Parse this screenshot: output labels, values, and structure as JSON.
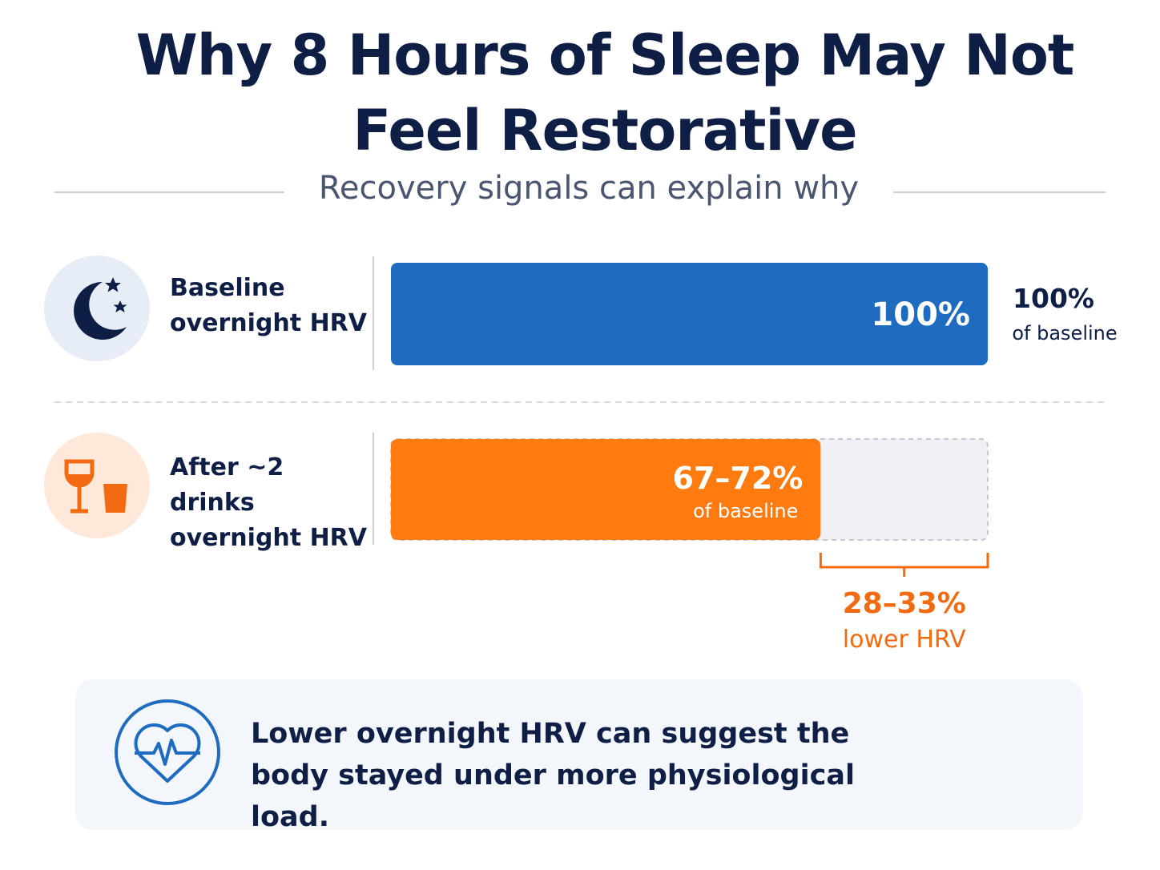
{
  "chart_data": {
    "type": "bar",
    "orientation": "horizontal",
    "title": "Why 8 Hours of Sleep May Not Feel Restorative",
    "subtitle": "Recovery signals can explain why",
    "categories": [
      "Baseline overnight HRV",
      "After ~2 drinks overnight HRV"
    ],
    "values": [
      100,
      72
    ],
    "value_labels": [
      "100%",
      "67–72%"
    ],
    "value_note": "of baseline",
    "colors": [
      "#1e6bbf",
      "#ff7a0f"
    ],
    "xlim": [
      0,
      100
    ],
    "gap_label": "28–33%",
    "gap_note": "lower HRV",
    "callout": "Lower overnight HRV can suggest the body stayed under more physiological load."
  }
}
